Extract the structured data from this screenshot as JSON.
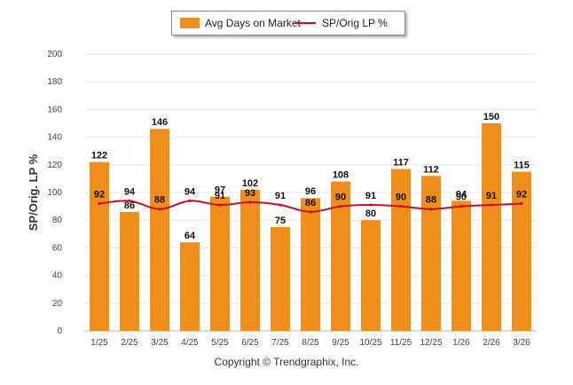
{
  "legend": {
    "bar_label": "Avg Days on Market",
    "line_label": "SP/Orig LP %"
  },
  "footer": {
    "copyright": "Copyright © Trendgraphix, Inc."
  },
  "colors": {
    "bar": "#f08e1b",
    "line": "#c8101e",
    "grid": "#e6e6e6"
  },
  "chart_data": {
    "type": "bar",
    "title": "",
    "xlabel": "",
    "ylabel": "SP/Orig. LP %",
    "ylim": [
      0,
      200
    ],
    "yticks": [
      0,
      20,
      40,
      60,
      80,
      100,
      120,
      140,
      160,
      180,
      200
    ],
    "grid": true,
    "legend_position": "top-center",
    "categories": [
      "1/25",
      "2/25",
      "3/25",
      "4/25",
      "5/25",
      "6/25",
      "7/25",
      "8/25",
      "9/25",
      "10/25",
      "11/25",
      "12/25",
      "1/26",
      "2/26",
      "3/26"
    ],
    "series": [
      {
        "name": "Avg Days on Market",
        "type": "bar",
        "values": [
          122,
          86,
          146,
          64,
          97,
          102,
          75,
          96,
          108,
          80,
          117,
          112,
          94,
          150,
          115
        ]
      },
      {
        "name": "SP/Orig LP %",
        "type": "line",
        "values": [
          92,
          94,
          88,
          94,
          91,
          93,
          91,
          86,
          90,
          91,
          90,
          88,
          90,
          91,
          92
        ]
      }
    ]
  }
}
